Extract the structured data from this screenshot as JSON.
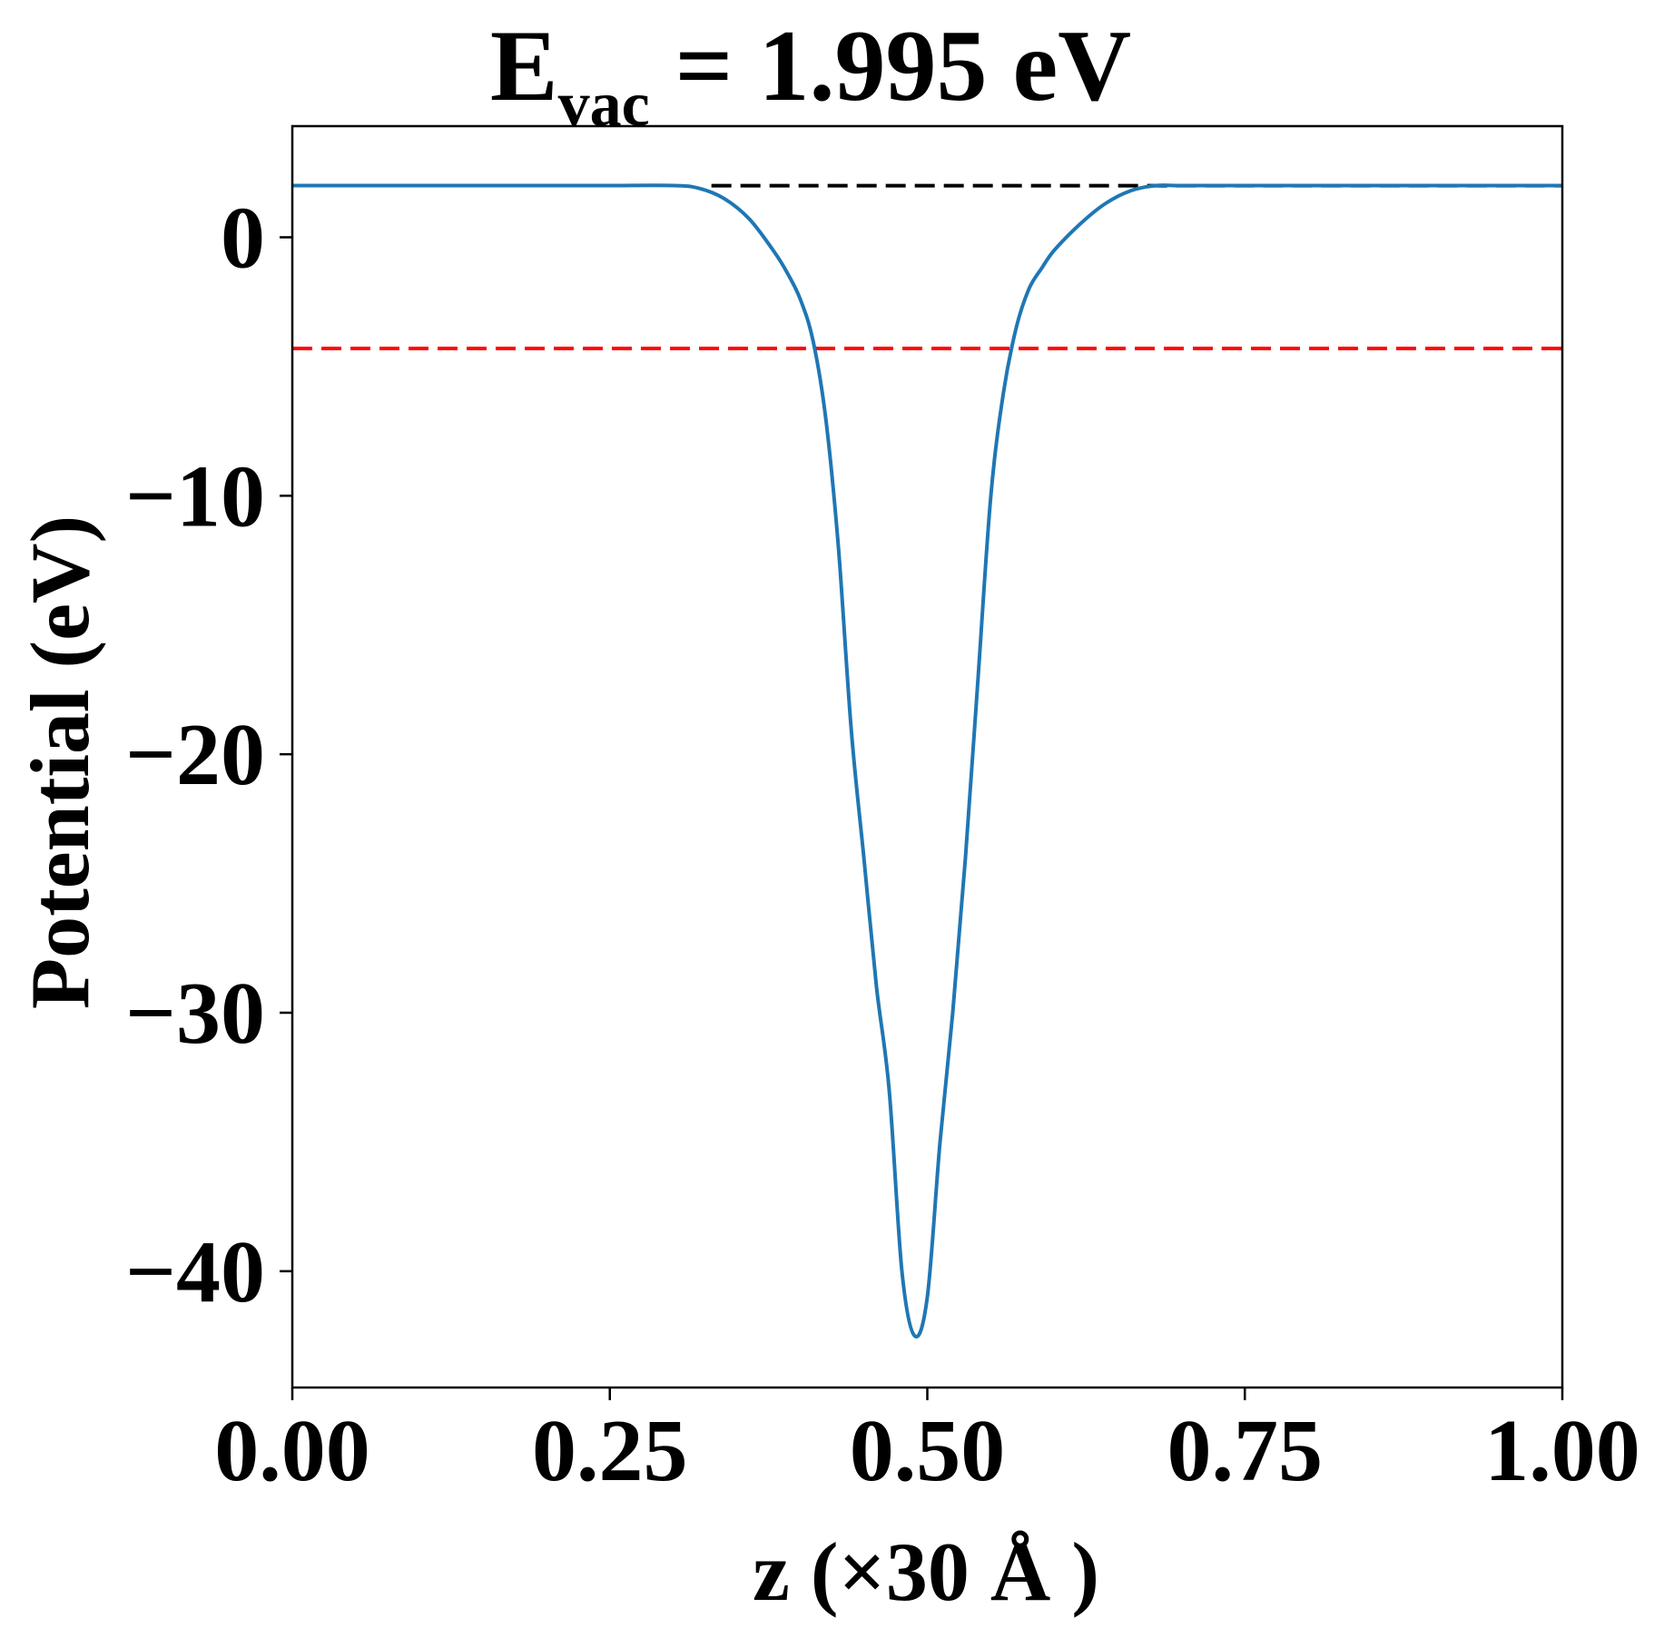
{
  "chart_data": {
    "type": "line",
    "title": {
      "main": "E",
      "subscript": "vac",
      "rest": " = 1.995 eV"
    },
    "xlabel": "z (×30 Å )",
    "ylabel": "Potential (eV)",
    "xlim": [
      0.0,
      1.0
    ],
    "ylim": [
      -44.5,
      4.3
    ],
    "x_ticks": [
      0.0,
      0.25,
      0.5,
      0.75,
      1.0
    ],
    "x_tick_labels": [
      "0.00",
      "0.25",
      "0.50",
      "0.75",
      "1.00"
    ],
    "y_ticks": [
      0,
      -10,
      -20,
      -30,
      -40
    ],
    "y_tick_labels": [
      "0",
      "−10",
      "−20",
      "−30",
      "−40"
    ],
    "grid": false,
    "legend": "none",
    "series": [
      {
        "color": "#1f77b4",
        "x": [
          0.0,
          0.05,
          0.1,
          0.15,
          0.2,
          0.25,
          0.3,
          0.32,
          0.34,
          0.36,
          0.38,
          0.39,
          0.4,
          0.41,
          0.42,
          0.43,
          0.44,
          0.45,
          0.46,
          0.47,
          0.48,
          0.49,
          0.5,
          0.51,
          0.52,
          0.53,
          0.54,
          0.55,
          0.56,
          0.57,
          0.58,
          0.59,
          0.6,
          0.62,
          0.64,
          0.66,
          0.68,
          0.7,
          0.75,
          0.8,
          0.85,
          0.9,
          0.95,
          1.0
        ],
        "y": [
          2.0,
          2.0,
          2.0,
          2.0,
          2.0,
          2.0,
          2.0,
          1.9,
          1.5,
          0.7,
          -0.6,
          -1.4,
          -2.4,
          -4.0,
          -7.0,
          -12.0,
          -19.0,
          -24.0,
          -29.0,
          -33.0,
          -40.0,
          -42.5,
          -41.0,
          -35.0,
          -30.0,
          -24.0,
          -17.0,
          -10.0,
          -6.0,
          -3.5,
          -2.0,
          -1.2,
          -0.5,
          0.5,
          1.3,
          1.8,
          2.0,
          2.0,
          2.0,
          2.0,
          2.0,
          2.0,
          2.0,
          2.0
        ]
      }
    ],
    "reference_lines": [
      {
        "color": "#000000",
        "y": 1.995,
        "x_start": 0.33,
        "x_end": 1.0
      },
      {
        "color": "#ff0000",
        "y": -4.3,
        "x_start": 0.0,
        "x_end": 1.0
      }
    ]
  }
}
